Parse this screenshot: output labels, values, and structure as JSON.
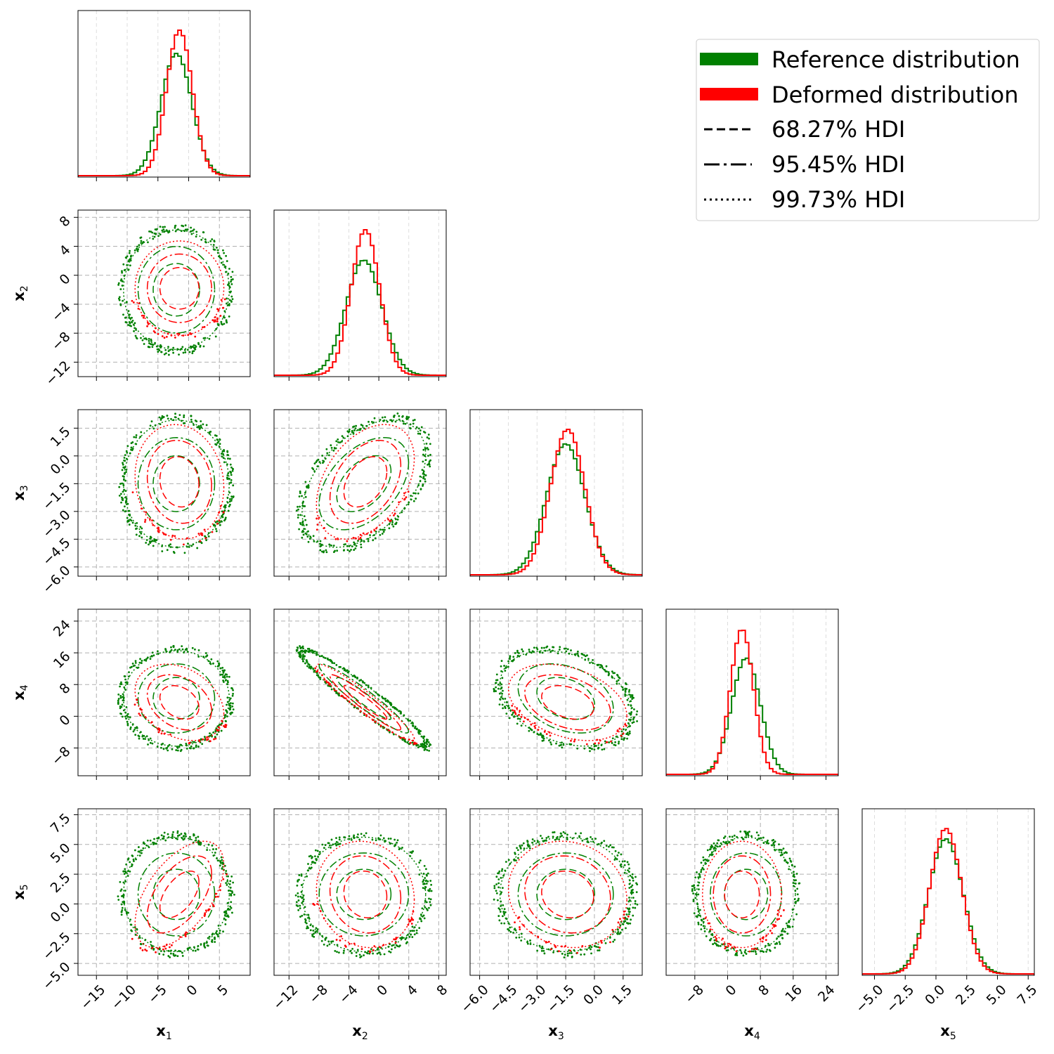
{
  "chart_data": {
    "type": "corner",
    "grid": true,
    "legend_position": "top-right",
    "variables": [
      {
        "name": "x",
        "subscript": "1",
        "range": [
          -18,
          10
        ],
        "ticks": [
          -15,
          -10,
          -5,
          0,
          5
        ],
        "tick_labels": [
          "−15",
          "−10",
          "−5",
          "0",
          "5"
        ],
        "ref": {
          "mean": -2.0,
          "sd": 2.5
        },
        "def": {
          "mean": -1.5,
          "sd": 2.1
        }
      },
      {
        "name": "x",
        "subscript": "2",
        "range": [
          -14,
          9
        ],
        "ticks": [
          -12,
          -8,
          -4,
          0,
          4,
          8
        ],
        "tick_labels": [
          "−12",
          "−8",
          "−4",
          "0",
          "4",
          "8"
        ],
        "ref": {
          "mean": -2.0,
          "sd": 2.4
        },
        "def": {
          "mean": -1.8,
          "sd": 1.9
        }
      },
      {
        "name": "x",
        "subscript": "3",
        "range": [
          -6.5,
          2.5
        ],
        "ticks": [
          -6.0,
          -4.5,
          -3.0,
          -1.5,
          0.0,
          1.5
        ],
        "tick_labels": [
          "−6.0",
          "−4.5",
          "−3.0",
          "−1.5",
          "0.0",
          "1.5"
        ],
        "ref": {
          "mean": -1.5,
          "sd": 1.0
        },
        "def": {
          "mean": -1.4,
          "sd": 0.9
        }
      },
      {
        "name": "x",
        "subscript": "4",
        "range": [
          -15,
          27
        ],
        "ticks": [
          -8,
          0,
          8,
          16,
          24
        ],
        "tick_labels": [
          "−8",
          "0",
          "8",
          "16",
          "24"
        ],
        "ref": {
          "mean": 4.5,
          "sd": 3.5
        },
        "def": {
          "mean": 3.5,
          "sd": 2.8
        }
      },
      {
        "name": "x",
        "subscript": "5",
        "range": [
          -6,
          8
        ],
        "ticks": [
          -5.0,
          -2.5,
          0.0,
          2.5,
          5.0,
          7.5
        ],
        "tick_labels": [
          "−5.0",
          "−2.5",
          "0.0",
          "2.5",
          "5.0",
          "7.5"
        ],
        "ref": {
          "mean": 0.8,
          "sd": 1.4
        },
        "def": {
          "mean": 0.8,
          "sd": 1.3
        }
      }
    ],
    "correlations": {
      "ref": [
        [
          1,
          0,
          0,
          0,
          0
        ],
        [
          0,
          1,
          0.45,
          -0.95,
          0
        ],
        [
          0,
          0.45,
          1,
          -0.3,
          0
        ],
        [
          0,
          -0.95,
          -0.3,
          1,
          0
        ],
        [
          0,
          0,
          0,
          0,
          1
        ]
      ],
      "def": [
        [
          1,
          0,
          -0.1,
          -0.3,
          0.55
        ],
        [
          0,
          1,
          0.4,
          -0.95,
          -0.1
        ],
        [
          -0.1,
          0.4,
          1,
          -0.35,
          -0.1
        ],
        [
          -0.3,
          -0.95,
          -0.35,
          1,
          0
        ],
        [
          0.55,
          -0.1,
          -0.1,
          0,
          1
        ]
      ]
    },
    "hdi_levels": [
      {
        "label": "68.27% HDI",
        "k": 1.51,
        "dash": "10 5"
      },
      {
        "label": "95.45% HDI",
        "k": 2.49,
        "dash": "12 4 3 4"
      },
      {
        "label": "99.73% HDI",
        "k": 3.44,
        "dash": "2 3"
      }
    ],
    "series": [
      {
        "name": "Reference distribution",
        "color": "#008000"
      },
      {
        "name": "Deformed distribution",
        "color": "#ff0000"
      }
    ]
  },
  "legend": {
    "entries": [
      "Reference distribution",
      "Deformed distribution",
      "68.27% HDI",
      "95.45% HDI",
      "99.73% HDI"
    ]
  }
}
